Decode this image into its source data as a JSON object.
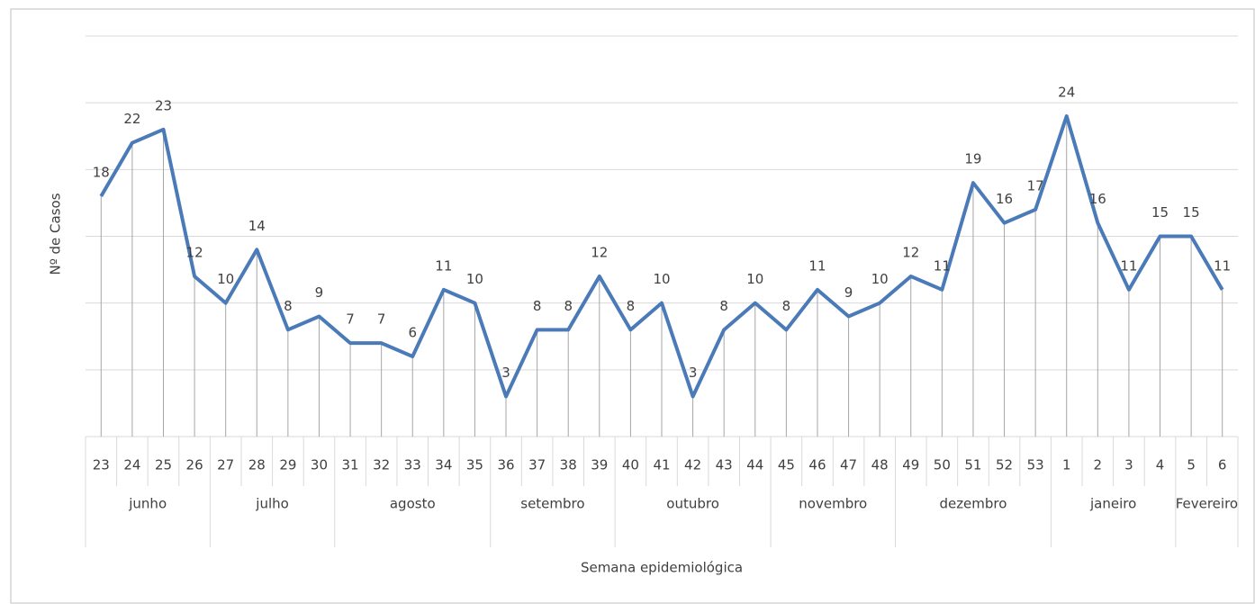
{
  "chart_data": {
    "type": "line",
    "x_label": "Semana epidemiológica",
    "y_label": "Nº de Casos",
    "groups": [
      {
        "label": "junho",
        "categories": [
          "23",
          "24",
          "25",
          "26"
        ]
      },
      {
        "label": "julho",
        "categories": [
          "27",
          "28",
          "29",
          "30"
        ]
      },
      {
        "label": "agosto",
        "categories": [
          "31",
          "32",
          "33",
          "34",
          "35"
        ]
      },
      {
        "label": "setembro",
        "categories": [
          "36",
          "37",
          "38",
          "39"
        ]
      },
      {
        "label": "outubro",
        "categories": [
          "40",
          "41",
          "42",
          "43",
          "44"
        ]
      },
      {
        "label": "novembro",
        "categories": [
          "45",
          "46",
          "47",
          "48"
        ]
      },
      {
        "label": "dezembro",
        "categories": [
          "49",
          "50",
          "51",
          "52",
          "53"
        ]
      },
      {
        "label": "janeiro",
        "categories": [
          "1",
          "2",
          "3",
          "4"
        ]
      },
      {
        "label": "Fevereiro",
        "categories": [
          "5",
          "6"
        ]
      }
    ],
    "values": [
      18,
      22,
      23,
      12,
      10,
      14,
      8,
      9,
      7,
      7,
      6,
      11,
      10,
      3,
      8,
      8,
      12,
      8,
      10,
      3,
      8,
      10,
      8,
      11,
      9,
      10,
      12,
      11,
      19,
      16,
      17,
      24,
      16,
      11,
      15,
      15,
      11
    ],
    "color": "#4a7ab8",
    "ylim": [
      0,
      30
    ],
    "yticks": [
      0,
      5,
      10,
      15,
      20,
      25,
      30
    ],
    "grid": true,
    "drop_lines": true
  }
}
